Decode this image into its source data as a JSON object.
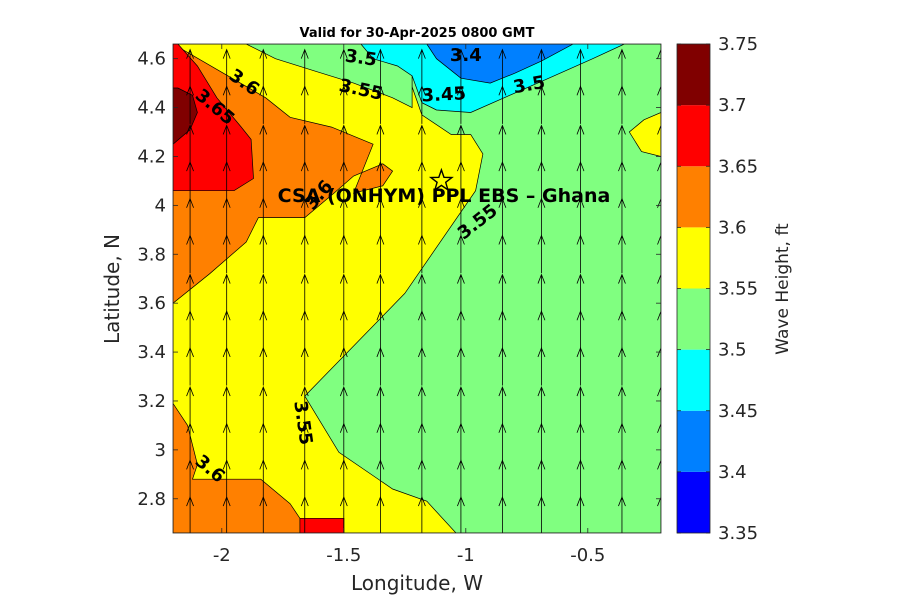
{
  "chart_data": {
    "type": "contour",
    "title": "Valid for 30-Apr-2025 0800 GMT",
    "xlabel": "Longitude, W",
    "ylabel": "Latitude, N",
    "xlim": [
      -2.2,
      -0.2
    ],
    "ylim": [
      2.66,
      4.66
    ],
    "x_ticks": [
      -2,
      -1.5,
      -1,
      -0.5
    ],
    "x_tick_labels": [
      "-2",
      "-1.5",
      "-1",
      "-0.5"
    ],
    "y_ticks": [
      2.8,
      3,
      3.2,
      3.4,
      3.6,
      3.8,
      4,
      4.2,
      4.4,
      4.6
    ],
    "y_tick_labels": [
      "2.8",
      "3",
      "3.2",
      "3.4",
      "3.6",
      "3.8",
      "4",
      "4.2",
      "4.4",
      "4.6"
    ],
    "colorbar": {
      "label": "Wave Height, ft",
      "levels": [
        3.35,
        3.4,
        3.45,
        3.5,
        3.55,
        3.6,
        3.65,
        3.7,
        3.75
      ],
      "tick_labels": [
        "3.35",
        "3.4",
        "3.45",
        "3.5",
        "3.55",
        "3.6",
        "3.65",
        "3.7",
        "3.75"
      ],
      "colors": [
        "#0000ff",
        "#0080ff",
        "#00ffff",
        "#80ff80",
        "#ffff00",
        "#ff8000",
        "#ff0000",
        "#800000"
      ]
    },
    "contour_labels": [
      "3.5",
      "3.4",
      "3.6",
      "3.45",
      "3.55",
      "3.5",
      "3.65",
      "3.6",
      "3.55",
      "3.55",
      "3.6"
    ],
    "site": {
      "name": "CSA (ONHYM) PPL EBS  – Ghana",
      "lon": -1.1,
      "lat": 4.1,
      "marker": "star"
    },
    "wave_direction": "north",
    "arrow_lons": [
      -2.13,
      -1.98,
      -1.83,
      -1.66,
      -1.5,
      -1.35,
      -1.18,
      -1.02,
      -0.85,
      -0.69,
      -0.53,
      -0.36,
      -0.2
    ],
    "arrow_lats": [
      2.73,
      2.88,
      3.03,
      3.18,
      3.34,
      3.49,
      3.64,
      3.8,
      3.95,
      4.1,
      4.25,
      4.41,
      4.56
    ],
    "regions": [
      {
        "value_band": [
          3.55,
          3.6
        ],
        "color": "#ffff00",
        "polygon": [
          [
            -2.2,
            2.66
          ],
          [
            -0.2,
            2.66
          ],
          [
            -0.2,
            4.66
          ],
          [
            -2.2,
            4.66
          ]
        ]
      },
      {
        "value_band": [
          3.5,
          3.55
        ],
        "color": "#80ff80",
        "polygon": [
          [
            -1.66,
            3.22
          ],
          [
            -1.52,
            2.99
          ],
          [
            -1.3,
            2.84
          ],
          [
            -1.16,
            2.79
          ],
          [
            -1.04,
            2.66
          ],
          [
            -0.2,
            2.66
          ],
          [
            -0.2,
            4.66
          ],
          [
            -1.35,
            4.66
          ],
          [
            -1.25,
            4.57
          ],
          [
            -1.18,
            4.37
          ],
          [
            -1.06,
            4.29
          ],
          [
            -0.98,
            4.29
          ],
          [
            -0.93,
            4.21
          ],
          [
            -0.96,
            4.06
          ],
          [
            -1.25,
            3.64
          ]
        ]
      },
      {
        "value_band": [
          3.55,
          3.6
        ],
        "color": "#ffff00",
        "polygon": [
          [
            -0.2,
            4.38
          ],
          [
            -0.27,
            4.35
          ],
          [
            -0.33,
            4.3
          ],
          [
            -0.28,
            4.22
          ],
          [
            -0.2,
            4.2
          ]
        ]
      },
      {
        "value_band": [
          3.5,
          3.55
        ],
        "color": "#80ff80",
        "polygon": [
          [
            -1.9,
            4.66
          ],
          [
            -1.78,
            4.6
          ],
          [
            -1.62,
            4.55
          ],
          [
            -1.46,
            4.5
          ],
          [
            -1.3,
            4.44
          ],
          [
            -1.22,
            4.4
          ],
          [
            -1.22,
            4.66
          ]
        ]
      },
      {
        "value_band": [
          3.45,
          3.5
        ],
        "color": "#00ffff",
        "polygon": [
          [
            -1.43,
            4.66
          ],
          [
            -1.38,
            4.6
          ],
          [
            -1.28,
            4.57
          ],
          [
            -1.22,
            4.53
          ],
          [
            -1.18,
            4.42
          ],
          [
            -1.12,
            4.39
          ],
          [
            -0.98,
            4.38
          ],
          [
            -0.82,
            4.45
          ],
          [
            -0.66,
            4.52
          ],
          [
            -0.48,
            4.6
          ],
          [
            -0.35,
            4.66
          ]
        ]
      },
      {
        "value_band": [
          3.4,
          3.45
        ],
        "color": "#0080ff",
        "polygon": [
          [
            -1.16,
            4.66
          ],
          [
            -1.12,
            4.6
          ],
          [
            -1.02,
            4.52
          ],
          [
            -0.9,
            4.5
          ],
          [
            -0.8,
            4.54
          ],
          [
            -0.69,
            4.59
          ],
          [
            -0.56,
            4.66
          ]
        ]
      },
      {
        "value_band": [
          3.6,
          3.65
        ],
        "color": "#ff8000",
        "polygon": [
          [
            -2.2,
            3.6
          ],
          [
            -2.05,
            3.72
          ],
          [
            -1.9,
            3.85
          ],
          [
            -1.85,
            3.95
          ],
          [
            -1.66,
            3.95
          ],
          [
            -1.54,
            4.05
          ],
          [
            -1.46,
            4.12
          ],
          [
            -1.34,
            4.17
          ],
          [
            -1.3,
            4.14
          ],
          [
            -1.34,
            4.08
          ],
          [
            -1.46,
            4.05
          ],
          [
            -1.38,
            4.25
          ],
          [
            -1.55,
            4.32
          ],
          [
            -1.72,
            4.36
          ],
          [
            -1.82,
            4.44
          ],
          [
            -2.2,
            4.66
          ]
        ]
      },
      {
        "value_band": [
          3.65,
          3.7
        ],
        "color": "#ff0000",
        "polygon": [
          [
            -2.2,
            4.06
          ],
          [
            -2.08,
            4.06
          ],
          [
            -1.95,
            4.06
          ],
          [
            -1.87,
            4.11
          ],
          [
            -1.88,
            4.27
          ],
          [
            -1.92,
            4.32
          ],
          [
            -2.02,
            4.44
          ],
          [
            -2.1,
            4.57
          ],
          [
            -2.18,
            4.66
          ],
          [
            -2.2,
            4.66
          ]
        ]
      },
      {
        "value_band": [
          3.7,
          3.75
        ],
        "color": "#800000",
        "polygon": [
          [
            -2.2,
            4.25
          ],
          [
            -2.13,
            4.31
          ],
          [
            -2.1,
            4.38
          ],
          [
            -2.12,
            4.45
          ],
          [
            -2.18,
            4.48
          ],
          [
            -2.2,
            4.48
          ]
        ]
      },
      {
        "value_band": [
          3.6,
          3.65
        ],
        "color": "#ff8000",
        "polygon": [
          [
            -2.2,
            3.19
          ],
          [
            -2.14,
            3.1
          ],
          [
            -2.1,
            2.94
          ],
          [
            -2.12,
            2.88
          ],
          [
            -1.92,
            2.88
          ],
          [
            -1.84,
            2.88
          ],
          [
            -1.72,
            2.78
          ],
          [
            -1.68,
            2.72
          ],
          [
            -1.5,
            2.72
          ],
          [
            -1.5,
            2.66
          ],
          [
            -2.2,
            2.66
          ]
        ]
      },
      {
        "value_band": [
          3.65,
          3.7
        ],
        "color": "#ff0000",
        "polygon": [
          [
            -1.68,
            2.72
          ],
          [
            -1.5,
            2.72
          ],
          [
            -1.5,
            2.66
          ],
          [
            -1.68,
            2.66
          ]
        ]
      }
    ]
  }
}
